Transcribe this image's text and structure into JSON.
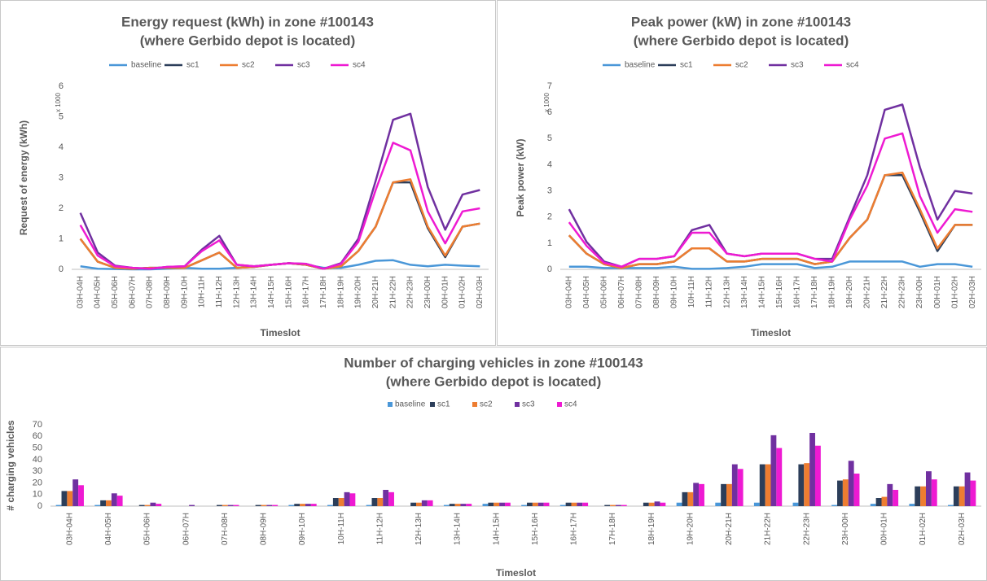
{
  "chart_data": [
    {
      "type": "line",
      "title": "Energy request (kWh) in zone #100143",
      "subtitle": "(where Gerbido depot is located)",
      "x_label": "Timeslot",
      "y_label": "Request of energy (kWh)",
      "y_multiplier": "x 1000",
      "categories": [
        "03H-04H",
        "04H-05H",
        "05H-06H",
        "06H-07H",
        "07H-08H",
        "08H-09H",
        "09H-10H",
        "10H-11H",
        "11H-12H",
        "12H-13H",
        "13H-14H",
        "14H-15H",
        "15H-16H",
        "16H-17H",
        "17H-18H",
        "18H-19H",
        "19H-20H",
        "20H-21H",
        "21H-22H",
        "22H-23H",
        "23H-00H",
        "00H-01H",
        "01H-02H",
        "02H-03H"
      ],
      "ylim": [
        0,
        6
      ],
      "yticks": [
        0,
        1,
        2,
        3,
        4,
        5,
        6
      ],
      "grid": false,
      "series": [
        {
          "name": "baseline",
          "color": "#4a97d8",
          "values": [
            0.1,
            0.02,
            0.01,
            0,
            0,
            0.02,
            0.05,
            0.02,
            0.02,
            0.05,
            0.1,
            0.15,
            0.2,
            0.15,
            0.05,
            0.05,
            0.15,
            0.28,
            0.3,
            0.15,
            0.1,
            0.15,
            0.12,
            0.1
          ]
        },
        {
          "name": "sc1",
          "color": "#2c3e5a",
          "values": [
            1.0,
            0.25,
            0.05,
            0.02,
            0.05,
            0.05,
            0.05,
            0.3,
            0.55,
            0.05,
            0.08,
            0.15,
            0.2,
            0.15,
            0.02,
            0.1,
            0.6,
            1.4,
            2.85,
            2.85,
            1.35,
            0.4,
            1.4,
            1.5
          ]
        },
        {
          "name": "sc2",
          "color": "#ed7d31",
          "values": [
            1.0,
            0.25,
            0.05,
            0.02,
            0.05,
            0.05,
            0.05,
            0.3,
            0.55,
            0.05,
            0.08,
            0.15,
            0.2,
            0.15,
            0.02,
            0.1,
            0.6,
            1.4,
            2.85,
            2.95,
            1.4,
            0.45,
            1.4,
            1.5
          ]
        },
        {
          "name": "sc3",
          "color": "#7030a0",
          "values": [
            1.85,
            0.55,
            0.12,
            0.05,
            0.02,
            0.08,
            0.1,
            0.65,
            1.1,
            0.15,
            0.1,
            0.15,
            0.2,
            0.18,
            0.02,
            0.2,
            1.0,
            2.9,
            4.9,
            5.1,
            2.7,
            1.3,
            2.45,
            2.6
          ]
        },
        {
          "name": "sc4",
          "color": "#ee1ad2",
          "values": [
            1.45,
            0.45,
            0.1,
            0.05,
            0.02,
            0.08,
            0.1,
            0.6,
            0.95,
            0.15,
            0.1,
            0.15,
            0.2,
            0.18,
            0.02,
            0.18,
            0.9,
            2.6,
            4.15,
            3.9,
            1.9,
            0.85,
            1.9,
            2.0
          ]
        }
      ]
    },
    {
      "type": "line",
      "title": "Peak power (kW) in zone #100143",
      "subtitle": "(where Gerbido depot is located)",
      "x_label": "Timeslot",
      "y_label": "Peak power (kW)",
      "y_multiplier": "x 1000",
      "categories": [
        "03H-04H",
        "04H-05H",
        "05H-06H",
        "06H-07H",
        "07H-08H",
        "08H-09H",
        "09H-10H",
        "10H-11H",
        "11H-12H",
        "12H-13H",
        "13H-14H",
        "14H-15H",
        "15H-16H",
        "16H-17H",
        "17H-18H",
        "18H-19H",
        "19H-20H",
        "20H-21H",
        "21H-22H",
        "22H-23H",
        "23H-00H",
        "00H-01H",
        "01H-02H",
        "02H-03H"
      ],
      "ylim": [
        0,
        7
      ],
      "yticks": [
        0,
        1,
        2,
        3,
        4,
        5,
        6,
        7
      ],
      "grid": false,
      "series": [
        {
          "name": "baseline",
          "color": "#4a97d8",
          "values": [
            0.1,
            0.1,
            0.05,
            0.05,
            0.05,
            0.05,
            0.1,
            0.02,
            0.02,
            0.05,
            0.1,
            0.2,
            0.2,
            0.2,
            0.05,
            0.1,
            0.3,
            0.3,
            0.3,
            0.3,
            0.1,
            0.2,
            0.2,
            0.1
          ]
        },
        {
          "name": "sc1",
          "color": "#2c3e5a",
          "values": [
            1.3,
            0.6,
            0.2,
            0.05,
            0.2,
            0.2,
            0.3,
            0.8,
            0.8,
            0.3,
            0.3,
            0.4,
            0.4,
            0.4,
            0.2,
            0.3,
            1.2,
            1.9,
            3.6,
            3.6,
            2.2,
            0.7,
            1.7,
            1.7
          ]
        },
        {
          "name": "sc2",
          "color": "#ed7d31",
          "values": [
            1.3,
            0.6,
            0.2,
            0.05,
            0.2,
            0.2,
            0.3,
            0.8,
            0.8,
            0.3,
            0.3,
            0.4,
            0.4,
            0.4,
            0.2,
            0.3,
            1.2,
            1.9,
            3.6,
            3.7,
            2.3,
            0.8,
            1.7,
            1.7
          ]
        },
        {
          "name": "sc3",
          "color": "#7030a0",
          "values": [
            2.3,
            1.05,
            0.3,
            0.1,
            0.4,
            0.4,
            0.5,
            1.5,
            1.7,
            0.6,
            0.5,
            0.6,
            0.6,
            0.6,
            0.4,
            0.4,
            2.0,
            3.6,
            6.1,
            6.3,
            3.9,
            1.9,
            3.0,
            2.9
          ]
        },
        {
          "name": "sc4",
          "color": "#ee1ad2",
          "values": [
            1.8,
            0.9,
            0.25,
            0.1,
            0.4,
            0.4,
            0.5,
            1.4,
            1.4,
            0.6,
            0.5,
            0.6,
            0.6,
            0.6,
            0.4,
            0.3,
            1.9,
            3.2,
            5.0,
            5.2,
            2.8,
            1.4,
            2.3,
            2.2
          ]
        }
      ]
    },
    {
      "type": "bar",
      "title": "Number of charging vehicles in zone #100143",
      "subtitle": "(where Gerbido depot is located)",
      "x_label": "Timeslot",
      "y_label": "# charging vehicles",
      "categories": [
        "03H-04H",
        "04H-05H",
        "05H-06H",
        "06H-07H",
        "07H-08H",
        "08H-09H",
        "09H-10H",
        "10H-11H",
        "11H-12H",
        "12H-13H",
        "13H-14H",
        "14H-15H",
        "15H-16H",
        "16H-17H",
        "17H-18H",
        "18H-19H",
        "19H-20H",
        "20H-21H",
        "21H-22H",
        "22H-23H",
        "23H-00H",
        "00H-01H",
        "01H-02H",
        "02H-03H"
      ],
      "ylim": [
        0,
        70
      ],
      "yticks": [
        0,
        10,
        20,
        30,
        40,
        50,
        60,
        70
      ],
      "grid": false,
      "series": [
        {
          "name": "baseline",
          "color": "#4a97d8",
          "values": [
            1,
            1,
            0,
            0,
            0,
            0,
            1,
            1,
            1,
            0,
            1,
            2,
            1,
            1,
            0,
            0,
            3,
            3,
            3,
            3,
            1,
            2,
            2,
            1
          ]
        },
        {
          "name": "sc1",
          "color": "#2c3e5a",
          "values": [
            13,
            5,
            1,
            0,
            1,
            1,
            2,
            7,
            7,
            3,
            2,
            3,
            3,
            3,
            1,
            3,
            12,
            19,
            36,
            36,
            22,
            7,
            17,
            17
          ]
        },
        {
          "name": "sc2",
          "color": "#ed7d31",
          "values": [
            13,
            5,
            1,
            0,
            1,
            1,
            2,
            7,
            7,
            3,
            2,
            3,
            3,
            3,
            1,
            3,
            12,
            19,
            36,
            37,
            23,
            8,
            17,
            17
          ]
        },
        {
          "name": "sc3",
          "color": "#7030a0",
          "values": [
            23,
            11,
            3,
            1,
            1,
            1,
            2,
            12,
            14,
            5,
            2,
            3,
            3,
            3,
            1,
            4,
            20,
            36,
            61,
            63,
            39,
            19,
            30,
            29
          ]
        },
        {
          "name": "sc4",
          "color": "#ee1ad2",
          "values": [
            18,
            9,
            2,
            0,
            1,
            1,
            2,
            11,
            12,
            5,
            2,
            3,
            3,
            3,
            1,
            3,
            19,
            32,
            50,
            52,
            28,
            14,
            23,
            22
          ]
        }
      ]
    }
  ]
}
